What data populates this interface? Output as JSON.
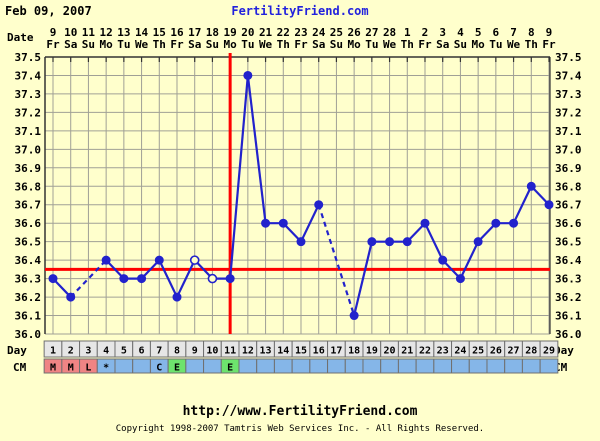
{
  "header": {
    "date": "Feb 09, 2007",
    "site_link": "FertilityFriend.com"
  },
  "labels": {
    "date": "Date",
    "day": "Day",
    "cm": "CM"
  },
  "footer": {
    "url": "http://www.FertilityFriend.com",
    "copyright": "Copyright 1998-2007 Tamtris Web Services Inc. - All Rights Reserved."
  },
  "colors": {
    "background": "#FFFFCC",
    "grid": "#A0A096",
    "spine": "#333333",
    "line_blue": "#2222CC",
    "red": "#FF0000",
    "link_blue": "#2222DD",
    "day_cell": "#E6E6E6",
    "cell_border": "#707070",
    "cm_blue": "#85B6E8",
    "cm_pink": "#F08484",
    "cm_green": "#6DE36D"
  },
  "chart_data": {
    "type": "line",
    "title": "Basal body temperature cycle chart",
    "legend_position": "none",
    "grid": true,
    "y_axis": {
      "min": 36.0,
      "max": 37.5,
      "step": 0.1,
      "tick_labels": [
        "37.5",
        "37.4",
        "37.3",
        "37.2",
        "37.1",
        "37.0",
        "36.9",
        "36.8",
        "36.7",
        "36.6",
        "36.5",
        "36.4",
        "36.3",
        "36.2",
        "36.1",
        "36.0"
      ]
    },
    "x_axis": {
      "dates": [
        "9",
        "10",
        "11",
        "12",
        "13",
        "14",
        "15",
        "16",
        "17",
        "18",
        "19",
        "20",
        "21",
        "22",
        "23",
        "24",
        "25",
        "26",
        "27",
        "28",
        "1",
        "2",
        "3",
        "4",
        "5",
        "6",
        "7",
        "8",
        "9"
      ],
      "weekdays": [
        "Fr",
        "Sa",
        "Su",
        "Mo",
        "Tu",
        "We",
        "Th",
        "Fr",
        "Sa",
        "Su",
        "Mo",
        "Tu",
        "We",
        "Th",
        "Fr",
        "Sa",
        "Su",
        "Mo",
        "Tu",
        "We",
        "Th",
        "Fr",
        "Sa",
        "Su",
        "Mo",
        "Tu",
        "We",
        "Th",
        "Fr"
      ],
      "cycle_days": [
        "1",
        "2",
        "3",
        "4",
        "5",
        "6",
        "7",
        "8",
        "9",
        "10",
        "11",
        "12",
        "13",
        "14",
        "15",
        "16",
        "17",
        "18",
        "19",
        "20",
        "21",
        "22",
        "23",
        "24",
        "25",
        "26",
        "27",
        "28",
        "29"
      ]
    },
    "temps_celsius": [
      36.3,
      36.2,
      null,
      36.4,
      36.3,
      36.3,
      36.4,
      36.2,
      36.4,
      36.3,
      36.3,
      37.4,
      36.6,
      36.6,
      36.5,
      36.7,
      null,
      36.1,
      36.5,
      36.5,
      36.5,
      36.6,
      36.4,
      36.3,
      36.5,
      36.6,
      36.6,
      36.8,
      36.7
    ],
    "open_circle_cycle_days": [
      9,
      10
    ],
    "missing_cycle_days": [
      3,
      17
    ],
    "coverline_temp": 36.35,
    "ovulation_line_cycle_day": 11,
    "cm_row": [
      {
        "label": "M",
        "color": "pink"
      },
      {
        "label": "M",
        "color": "pink"
      },
      {
        "label": "L",
        "color": "pink"
      },
      {
        "label": "*",
        "color": "blue"
      },
      {
        "label": "",
        "color": "blue"
      },
      {
        "label": "",
        "color": "blue"
      },
      {
        "label": "C",
        "color": "blue"
      },
      {
        "label": "E",
        "color": "green"
      },
      {
        "label": "",
        "color": "blue"
      },
      {
        "label": "",
        "color": "blue"
      },
      {
        "label": "E",
        "color": "green"
      },
      {
        "label": "",
        "color": "blue"
      },
      {
        "label": "",
        "color": "blue"
      },
      {
        "label": "",
        "color": "blue"
      },
      {
        "label": "",
        "color": "blue"
      },
      {
        "label": "",
        "color": "blue"
      },
      {
        "label": "",
        "color": "blue"
      },
      {
        "label": "",
        "color": "blue"
      },
      {
        "label": "",
        "color": "blue"
      },
      {
        "label": "",
        "color": "blue"
      },
      {
        "label": "",
        "color": "blue"
      },
      {
        "label": "",
        "color": "blue"
      },
      {
        "label": "",
        "color": "blue"
      },
      {
        "label": "",
        "color": "blue"
      },
      {
        "label": "",
        "color": "blue"
      },
      {
        "label": "",
        "color": "blue"
      },
      {
        "label": "",
        "color": "blue"
      },
      {
        "label": "",
        "color": "blue"
      },
      {
        "label": "",
        "color": "blue"
      }
    ]
  }
}
